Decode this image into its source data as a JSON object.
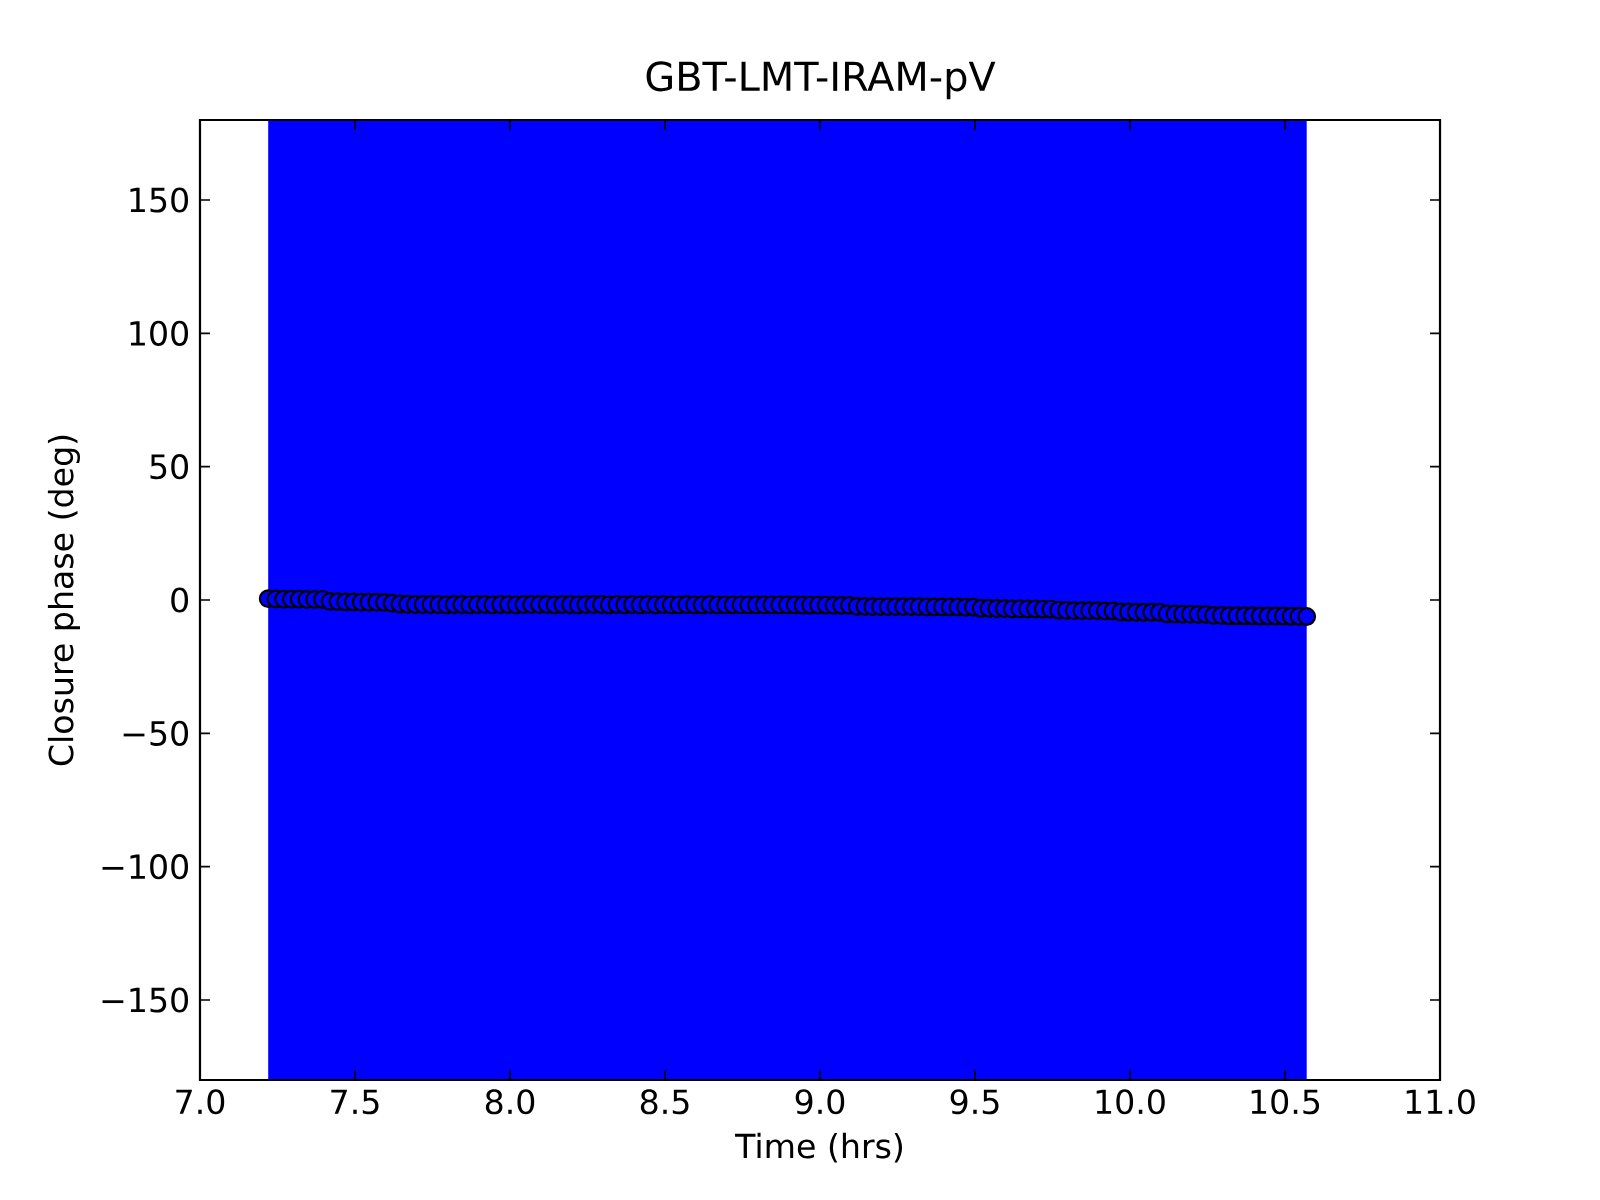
{
  "chart_data": {
    "type": "scatter",
    "title": "GBT-LMT-IRAM-pV",
    "xlabel": "Time (hrs)",
    "ylabel": "Closure phase (deg)",
    "xlim": [
      7.0,
      11.0
    ],
    "xticks": [
      {
        "value": 7,
        "label": "7.0"
      },
      7.5,
      {
        "value": 8,
        "label": "8.0"
      },
      8.5,
      {
        "value": 9,
        "label": "9.0"
      },
      9.5,
      {
        "value": 10,
        "label": "10.0"
      },
      10.5,
      {
        "value": 11,
        "label": "11.0"
      }
    ],
    "ylim": [
      -180,
      180
    ],
    "yticks": [
      {
        "value": -150,
        "label": "−150"
      },
      {
        "value": -100,
        "label": "−100"
      },
      {
        "value": -50,
        "label": "−50"
      },
      0,
      50,
      100,
      150
    ],
    "marker": "circle",
    "bands": [
      {
        "axis": "x",
        "from": 7.22,
        "to": 10.57,
        "color": "#0000ff"
      }
    ],
    "series": [
      {
        "color": "#0000ff",
        "x": [
          7.22,
          7.245,
          7.27,
          7.295,
          7.32,
          7.345,
          7.37,
          7.395,
          7.42,
          7.445,
          7.47,
          7.495,
          7.52,
          7.545,
          7.57,
          7.595,
          7.62,
          7.645,
          7.67,
          7.695,
          7.72,
          7.745,
          7.77,
          7.795,
          7.82,
          7.845,
          7.87,
          7.895,
          7.92,
          7.945,
          7.97,
          7.995,
          8.02,
          8.045,
          8.07,
          8.095,
          8.12,
          8.145,
          8.17,
          8.195,
          8.22,
          8.245,
          8.27,
          8.295,
          8.32,
          8.345,
          8.37,
          8.395,
          8.42,
          8.445,
          8.47,
          8.495,
          8.52,
          8.545,
          8.57,
          8.595,
          8.62,
          8.645,
          8.67,
          8.695,
          8.72,
          8.745,
          8.77,
          8.795,
          8.82,
          8.845,
          8.87,
          8.895,
          8.92,
          8.945,
          8.97,
          8.995,
          9.02,
          9.045,
          9.07,
          9.095,
          9.12,
          9.145,
          9.17,
          9.195,
          9.22,
          9.245,
          9.27,
          9.295,
          9.32,
          9.345,
          9.37,
          9.395,
          9.42,
          9.445,
          9.47,
          9.495,
          9.52,
          9.545,
          9.57,
          9.595,
          9.62,
          9.645,
          9.67,
          9.695,
          9.72,
          9.745,
          9.77,
          9.795,
          9.82,
          9.845,
          9.87,
          9.895,
          9.92,
          9.945,
          9.97,
          9.995,
          10.02,
          10.045,
          10.07,
          10.095,
          10.12,
          10.145,
          10.17,
          10.195,
          10.22,
          10.245,
          10.27,
          10.295,
          10.32,
          10.345,
          10.37,
          10.395,
          10.42,
          10.445,
          10.47,
          10.495,
          10.52,
          10.545,
          10.57
        ],
        "values": [
          0.5,
          0.4,
          0.3,
          0.3,
          0.3,
          0.2,
          0.2,
          0.2,
          -0.5,
          -0.6,
          -0.7,
          -0.7,
          -0.8,
          -0.8,
          -0.8,
          -0.9,
          -1.2,
          -1.5,
          -1.6,
          -1.7,
          -1.7,
          -1.7,
          -1.7,
          -1.8,
          -1.7,
          -1.7,
          -1.8,
          -1.7,
          -1.7,
          -1.8,
          -1.7,
          -1.7,
          -1.8,
          -1.7,
          -1.7,
          -1.7,
          -1.7,
          -1.8,
          -1.7,
          -1.7,
          -1.8,
          -1.7,
          -1.7,
          -1.7,
          -1.8,
          -1.7,
          -1.8,
          -1.7,
          -1.8,
          -1.7,
          -1.8,
          -1.7,
          -1.8,
          -1.8,
          -1.7,
          -1.8,
          -1.8,
          -1.7,
          -1.8,
          -1.8,
          -1.8,
          -1.8,
          -1.8,
          -1.8,
          -1.8,
          -1.8,
          -1.8,
          -1.8,
          -1.8,
          -1.9,
          -1.9,
          -1.9,
          -1.9,
          -2.0,
          -2.0,
          -2.0,
          -2.4,
          -2.4,
          -2.5,
          -2.5,
          -2.5,
          -2.5,
          -2.5,
          -2.5,
          -2.5,
          -2.6,
          -2.6,
          -2.6,
          -2.6,
          -2.6,
          -2.7,
          -2.7,
          -3.1,
          -3.1,
          -3.2,
          -3.2,
          -3.3,
          -3.3,
          -3.3,
          -3.3,
          -3.4,
          -3.4,
          -3.8,
          -3.9,
          -4.0,
          -4.0,
          -4.0,
          -4.0,
          -4.1,
          -4.1,
          -4.5,
          -4.5,
          -4.6,
          -4.6,
          -4.6,
          -4.6,
          -5.2,
          -5.2,
          -5.3,
          -5.3,
          -5.4,
          -5.4,
          -5.8,
          -5.8,
          -5.9,
          -5.9,
          -5.9,
          -5.9,
          -6.0,
          -6.0,
          -6.0,
          -6.0,
          -6.1,
          -6.1,
          -6.2
        ]
      }
    ]
  }
}
